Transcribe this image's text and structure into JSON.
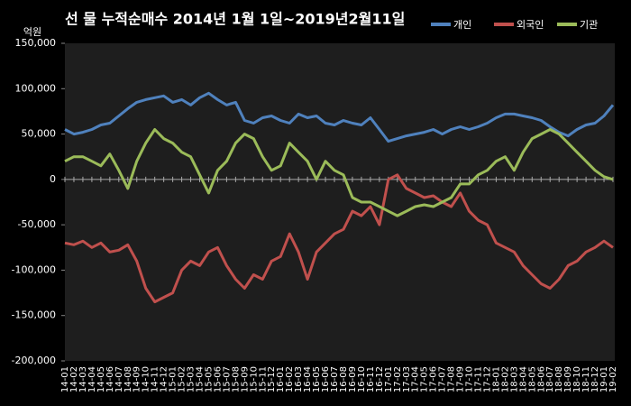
{
  "chart_data": {
    "type": "line",
    "title": "선 물 누적순매수 2014년 1월 1일~2019년2월11일",
    "y_unit": "억원",
    "categories": [
      "14-01",
      "14-02",
      "14-03",
      "14-04",
      "14-05",
      "14-06",
      "14-07",
      "14-08",
      "14-09",
      "14-10",
      "14-11",
      "14-12",
      "15-01",
      "15-02",
      "15-03",
      "15-04",
      "15-05",
      "15-06",
      "15-07",
      "15-08",
      "15-09",
      "15-10",
      "15-11",
      "15-12",
      "16-01",
      "16-02",
      "16-03",
      "16-04",
      "16-05",
      "16-06",
      "16-07",
      "16-08",
      "16-09",
      "16-10",
      "16-11",
      "16-12",
      "17-01",
      "17-02",
      "17-03",
      "17-04",
      "17-05",
      "17-06",
      "17-07",
      "17-08",
      "17-09",
      "17-10",
      "17-11",
      "17-12",
      "18-01",
      "18-02",
      "18-03",
      "18-04",
      "18-05",
      "18-06",
      "18-07",
      "18-08",
      "18-09",
      "18-10",
      "18-11",
      "18-12",
      "19-01",
      "19-02"
    ],
    "series": [
      {
        "name": "개인",
        "color": "#4f81bd",
        "values": [
          55000,
          50000,
          52000,
          55000,
          60000,
          62000,
          70000,
          78000,
          85000,
          88000,
          90000,
          92000,
          85000,
          88000,
          82000,
          90000,
          95000,
          88000,
          82000,
          85000,
          65000,
          62000,
          68000,
          70000,
          65000,
          62000,
          72000,
          68000,
          70000,
          62000,
          60000,
          65000,
          62000,
          60000,
          68000,
          55000,
          42000,
          45000,
          48000,
          50000,
          52000,
          55000,
          50000,
          55000,
          58000,
          55000,
          58000,
          62000,
          68000,
          72000,
          72000,
          70000,
          68000,
          65000,
          58000,
          52000,
          48000,
          55000,
          60000,
          62000,
          70000,
          82000
        ]
      },
      {
        "name": "외국인",
        "color": "#c0504d",
        "values": [
          -70000,
          -72000,
          -68000,
          -75000,
          -70000,
          -80000,
          -78000,
          -72000,
          -90000,
          -120000,
          -135000,
          -130000,
          -125000,
          -100000,
          -90000,
          -95000,
          -80000,
          -75000,
          -95000,
          -110000,
          -120000,
          -105000,
          -110000,
          -90000,
          -85000,
          -60000,
          -80000,
          -110000,
          -80000,
          -70000,
          -60000,
          -55000,
          -35000,
          -40000,
          -30000,
          -50000,
          0,
          5000,
          -10000,
          -15000,
          -20000,
          -18000,
          -25000,
          -30000,
          -15000,
          -35000,
          -45000,
          -50000,
          -70000,
          -75000,
          -80000,
          -95000,
          -105000,
          -115000,
          -120000,
          -110000,
          -95000,
          -90000,
          -80000,
          -75000,
          -68000,
          -75000
        ]
      },
      {
        "name": "기관",
        "color": "#9bbb59",
        "values": [
          20000,
          25000,
          25000,
          20000,
          15000,
          28000,
          10000,
          -10000,
          20000,
          40000,
          55000,
          45000,
          40000,
          30000,
          25000,
          5000,
          -15000,
          10000,
          20000,
          40000,
          50000,
          45000,
          25000,
          10000,
          15000,
          40000,
          30000,
          20000,
          0,
          20000,
          10000,
          5000,
          -20000,
          -25000,
          -25000,
          -30000,
          -35000,
          -40000,
          -35000,
          -30000,
          -28000,
          -30000,
          -25000,
          -20000,
          -5000,
          -5000,
          5000,
          10000,
          20000,
          25000,
          10000,
          30000,
          45000,
          50000,
          55000,
          50000,
          40000,
          30000,
          20000,
          10000,
          3000,
          0
        ]
      }
    ],
    "ylim": [
      -200000,
      150000
    ],
    "yticks": [
      {
        "value": -200000,
        "label": "-200,000"
      },
      {
        "value": -150000,
        "label": "-150,000"
      },
      {
        "value": -100000,
        "label": "-100,000"
      },
      {
        "value": -50000,
        "label": "-50,000"
      },
      0,
      {
        "value": 50000,
        "label": "50,000"
      },
      {
        "value": 100000,
        "label": "100,000"
      },
      {
        "value": 150000,
        "label": "150,000"
      }
    ],
    "legend": "top-right"
  }
}
